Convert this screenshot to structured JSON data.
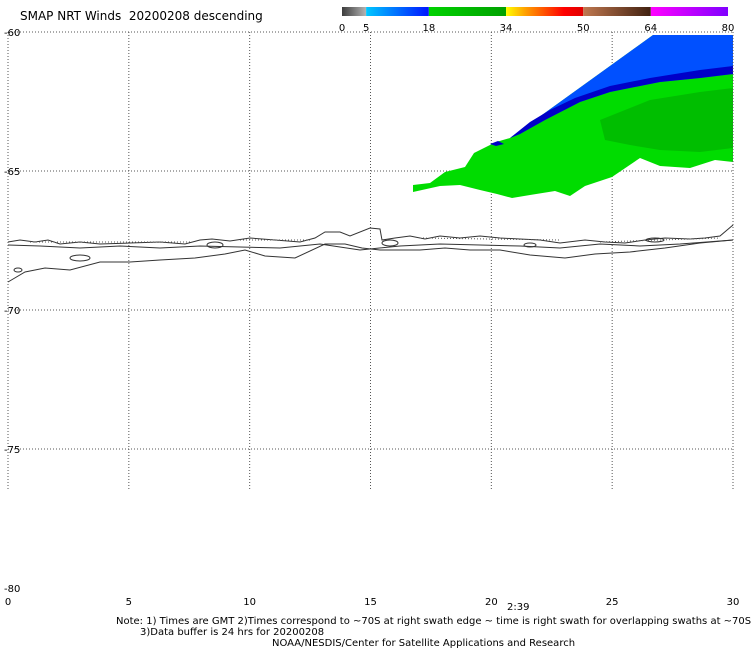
{
  "title": "SMAP NRT Winds  20200208 descending",
  "colorbar": {
    "tick_labels": [
      "0",
      "5",
      "18",
      "34",
      "50",
      "64",
      "80"
    ],
    "segments": [
      {
        "from": 0,
        "to": 5,
        "colors": [
          "#3c3c3c",
          "#b4b4b4"
        ]
      },
      {
        "from": 5,
        "to": 18,
        "colors": [
          "#00c8ff",
          "#0014ff"
        ]
      },
      {
        "from": 18,
        "to": 34,
        "colors": [
          "#00d200",
          "#00a000"
        ]
      },
      {
        "from": 34,
        "to": 50,
        "colors": [
          "#ffff00",
          "#ffa000",
          "#ff5000",
          "#ff0000",
          "#e00000"
        ]
      },
      {
        "from": 50,
        "to": 64,
        "colors": [
          "#c07850",
          "#402010"
        ]
      },
      {
        "from": 64,
        "to": 80,
        "colors": [
          "#ff00ff",
          "#8000ff"
        ]
      }
    ]
  },
  "axes": {
    "x_range": [
      0,
      30
    ],
    "y_range": [
      -60,
      -80
    ],
    "x_ticks": [
      "0",
      "5",
      "10",
      "15",
      "20",
      "25",
      "30"
    ],
    "y_ticks": [
      "-60",
      "-65",
      "-70",
      "-75",
      "-80"
    ],
    "grid": true,
    "grid_style": "dotted",
    "grid_lat_extent": [
      -60,
      -76.5
    ]
  },
  "swath_time": "2:39",
  "swath_colors": {
    "inner": "#00dc00",
    "mid": "#00b400",
    "edge": "#0050ff",
    "edge_dark": "#0000c8"
  },
  "notes": {
    "line1": "Note: 1) Times are GMT 2)Times correspond to ~70S at right swath edge ~ time is right swath for overlapping swaths at ~70S",
    "line2": "3)Data buffer is 24 hrs for 20200208",
    "line3": "NOAA/NESDIS/Center for Satellite Applications and Research"
  }
}
